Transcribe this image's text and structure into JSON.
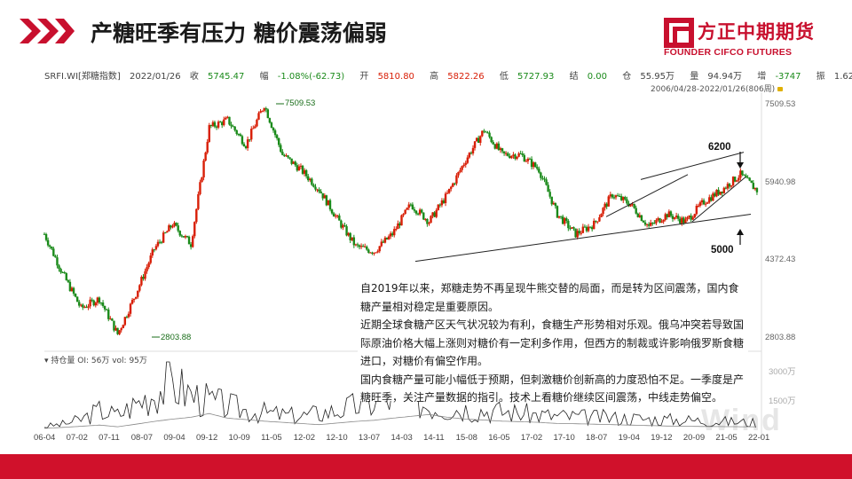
{
  "header": {
    "title": "产糖旺季有压力  糖价震荡偏弱",
    "logo_cn": "方正中期期货",
    "logo_en": "FOUNDER CIFCO FUTURES",
    "accent_color": "#c8102e"
  },
  "quote_bar": {
    "symbol": "SRFI.WI[郑糖指数]",
    "date": "2022/01/26",
    "close_label": "收",
    "close": "5745.47",
    "change_label": "幅",
    "change": "-1.08%(-62.73)",
    "open_label": "开",
    "open": "5810.80",
    "high_label": "高",
    "high": "5822.26",
    "low_label": "低",
    "low": "5727.93",
    "settle_label": "结",
    "settle": "0.00",
    "oi_label": "仓",
    "oi": "55.95万",
    "vol_label": "量",
    "vol": "94.94万",
    "inc_label": "增",
    "inc": "-3747",
    "amp_label": "振",
    "amp": "1.62%",
    "range": "2006/04/28-2022/01/26(806周)"
  },
  "annotations": {
    "max_label": "7509.53",
    "min_label": "2803.88",
    "upper_level": "6200",
    "lower_level": "5000"
  },
  "analysis": {
    "p1": "自2019年以来，郑糖走势不再呈现牛熊交替的局面，而是转为区间震荡，国内食糖产量相对稳定是重要原因。",
    "p2": "近期全球食糖产区天气状况较为有利，食糖生产形势相对乐观。俄乌冲突若导致国际原油价格大幅上涨则对糖价有一定利多作用，但西方的制裁或许影响俄罗斯食糖进口，对糖价有偏空作用。",
    "p3": "国内食糖产量可能小幅低于预期，但刺激糖价创新高的力度恐怕不足。一季度是产糖旺季，关注产量数据的指引。技术上看糖价继续区间震荡，中线走势偏空。"
  },
  "sub_panel": {
    "label": "持仓量 OI: 56万 vol: 95万",
    "y_ticks": [
      "3000万",
      "1500万"
    ]
  },
  "watermark": "Wind",
  "chart_data": {
    "type": "line",
    "title": "",
    "series": [
      {
        "name": "",
        "x": [
          "2006-04",
          "2007-02",
          "2007-10",
          "2008-07",
          "2008-11",
          "2009-04",
          "2009-10",
          "2010-01",
          "2010-06",
          "2010-11",
          "2011-02",
          "2011-06",
          "2011-09",
          "2012-01",
          "2012-06",
          "2013-01",
          "2013-08",
          "2014-03",
          "2014-05",
          "2014-10",
          "2015-06",
          "2015-10",
          "2016-04",
          "2016-10",
          "2017-01",
          "2017-06",
          "2017-11",
          "2018-03",
          "2018-07",
          "2018-10",
          "2019-04",
          "2019-09",
          "2020-01",
          "2020-05",
          "2020-09",
          "2021-01",
          "2021-05",
          "2021-09",
          "2021-11",
          "2022-01"
        ],
        "values": [
          4900,
          4100,
          3400,
          3600,
          2880,
          3700,
          4600,
          5100,
          4700,
          7050,
          7200,
          6700,
          7509.53,
          6500,
          6200,
          5800,
          5200,
          4650,
          4550,
          4900,
          5500,
          5150,
          5700,
          6400,
          7000,
          6500,
          6500,
          6200,
          5300,
          4900,
          5100,
          5700,
          5500,
          5050,
          5300,
          5150,
          5550,
          5800,
          6100,
          5745.47
        ]
      }
    ],
    "y_ticks": [
      "7509.53",
      "5940.98",
      "4372.43",
      "2803.88"
    ],
    "x_ticks": [
      "06-04",
      "07-02",
      "07-11",
      "08-07",
      "09-04",
      "09-12",
      "10-09",
      "11-05",
      "12-02",
      "12-10",
      "13-07",
      "14-03",
      "14-11",
      "15-08",
      "16-05",
      "17-02",
      "17-10",
      "18-07",
      "19-04",
      "19-12",
      "20-09",
      "21-05",
      "22-01"
    ],
    "ylim": [
      2803.88,
      7509.53
    ],
    "up_color": "#d81e06",
    "down_color": "#1a8a1a",
    "oi": [
      120,
      160,
      210,
      260,
      190,
      300,
      420,
      520,
      600,
      760,
      560,
      500,
      430,
      380,
      330,
      280,
      350,
      420,
      470,
      560,
      640,
      720,
      600,
      520,
      480,
      430,
      410,
      380,
      330,
      320,
      300,
      280,
      260,
      240,
      220,
      210,
      200,
      195,
      190,
      185
    ],
    "vol": [
      200,
      300,
      500,
      900,
      700,
      1200,
      1700,
      2100,
      1600,
      1300,
      1100,
      900,
      800,
      700,
      650,
      780,
      900,
      1100,
      1250,
      1400,
      1350,
      1100,
      1000,
      980,
      900,
      850,
      780,
      700,
      650,
      620,
      600,
      580,
      560,
      520,
      500,
      480,
      450,
      420,
      390,
      360
    ]
  }
}
